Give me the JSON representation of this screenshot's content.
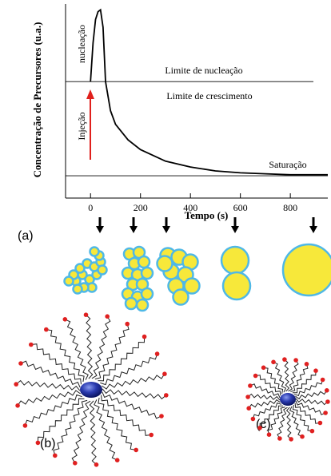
{
  "chart_data": {
    "type": "line",
    "y_label": "Concentração de Precursores (u.a.)",
    "x_label": "Tempo (s)",
    "x": [
      0,
      10,
      20,
      30,
      40,
      50,
      60,
      80,
      100,
      150,
      200,
      300,
      400,
      500,
      600,
      700,
      800,
      950
    ],
    "values": [
      60,
      80,
      92,
      96,
      97,
      88,
      60,
      45,
      38,
      30,
      25,
      19,
      16,
      14,
      13,
      12.5,
      12,
      12
    ],
    "color": "#000000",
    "xlim": [
      -100,
      950
    ],
    "ylim": [
      0,
      100
    ],
    "xticks": [
      0,
      200,
      400,
      600,
      800
    ],
    "reference_lines": [
      {
        "value": 60,
        "label": "Limite de nucleação",
        "label_below": "Limite de crescimento"
      },
      {
        "value": 11.5,
        "label": "Saturação"
      }
    ],
    "annotations": [
      "nucleação",
      "Injeção"
    ]
  },
  "panel_labels": [
    "(a)",
    "(b)",
    "(c)"
  ]
}
